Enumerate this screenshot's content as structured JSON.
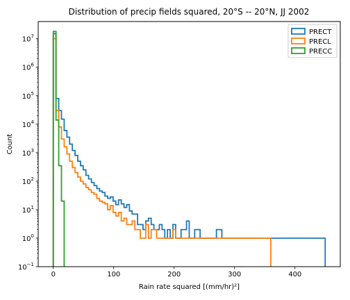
{
  "chart_data": {
    "type": "histogram",
    "title": "Distribution of precip fields squared, 20°S -- 20°N, JJ 2002",
    "xlabel": "Rain rate squared [(mm/hr)²]",
    "ylabel": "Count",
    "xlim": [
      -25,
      475
    ],
    "ylim": [
      0.1,
      40000000
    ],
    "yscale": "log",
    "x_ticks": [
      0,
      100,
      200,
      300,
      400
    ],
    "y_ticks": [
      {
        "value": 0.1,
        "base": "10",
        "exp": "−1"
      },
      {
        "value": 1,
        "base": "10",
        "exp": "0"
      },
      {
        "value": 10,
        "base": "10",
        "exp": "1"
      },
      {
        "value": 100,
        "base": "10",
        "exp": "2"
      },
      {
        "value": 1000,
        "base": "10",
        "exp": "3"
      },
      {
        "value": 10000,
        "base": "10",
        "exp": "4"
      },
      {
        "value": 100000,
        "base": "10",
        "exp": "5"
      },
      {
        "value": 1000000,
        "base": "10",
        "exp": "6"
      },
      {
        "value": 10000000,
        "base": "10",
        "exp": "7"
      }
    ],
    "legend_position": "top-right",
    "grid": false,
    "series": [
      {
        "name": "PRECT",
        "color": "#1f77b4",
        "bin_width": 4.5,
        "x_start": 0,
        "counts": [
          15000000,
          80000,
          30000,
          15000,
          6000,
          3500,
          2000,
          1200,
          800,
          500,
          350,
          250,
          160,
          120,
          90,
          70,
          55,
          45,
          40,
          30,
          25,
          28,
          20,
          15,
          22,
          16,
          12,
          15,
          9,
          7,
          7,
          3,
          3,
          2,
          4,
          5,
          3,
          2,
          2,
          3,
          2,
          1,
          2,
          1,
          3,
          1,
          1,
          2,
          2,
          4,
          1,
          1,
          2,
          2,
          1,
          1,
          1,
          1,
          1,
          1,
          2,
          2,
          1,
          1,
          1,
          1,
          1,
          1,
          1,
          1,
          1,
          1,
          1,
          1,
          1,
          1,
          1,
          1,
          1,
          1,
          1,
          1,
          1,
          1,
          1,
          1,
          1,
          1,
          1,
          1,
          1,
          1,
          1,
          1,
          1,
          1,
          1,
          1,
          1,
          1
        ]
      },
      {
        "name": "PRECL",
        "color": "#ff7f0e",
        "bin_width": 4.5,
        "x_start": 0,
        "counts": [
          10000000,
          30000,
          8000,
          3000,
          1600,
          900,
          500,
          300,
          200,
          140,
          100,
          80,
          60,
          50,
          40,
          35,
          25,
          20,
          18,
          16,
          10,
          14,
          8,
          6,
          8,
          4,
          5,
          3,
          3,
          4,
          2,
          2,
          1,
          1,
          3,
          1,
          2,
          2,
          1,
          1,
          1,
          1,
          1,
          1,
          2,
          1,
          1,
          1,
          1,
          1,
          1,
          1,
          1,
          1,
          1,
          1,
          1,
          1,
          1,
          1,
          1,
          1,
          1,
          1,
          1,
          1,
          1,
          1,
          1,
          1,
          1,
          1,
          1,
          1,
          1,
          1,
          1,
          1,
          1,
          1
        ]
      },
      {
        "name": "PRECC",
        "color": "#2ca02c",
        "bin_width": 4.5,
        "x_start": 0,
        "counts": [
          18000000,
          14000,
          350,
          20
        ]
      }
    ]
  }
}
